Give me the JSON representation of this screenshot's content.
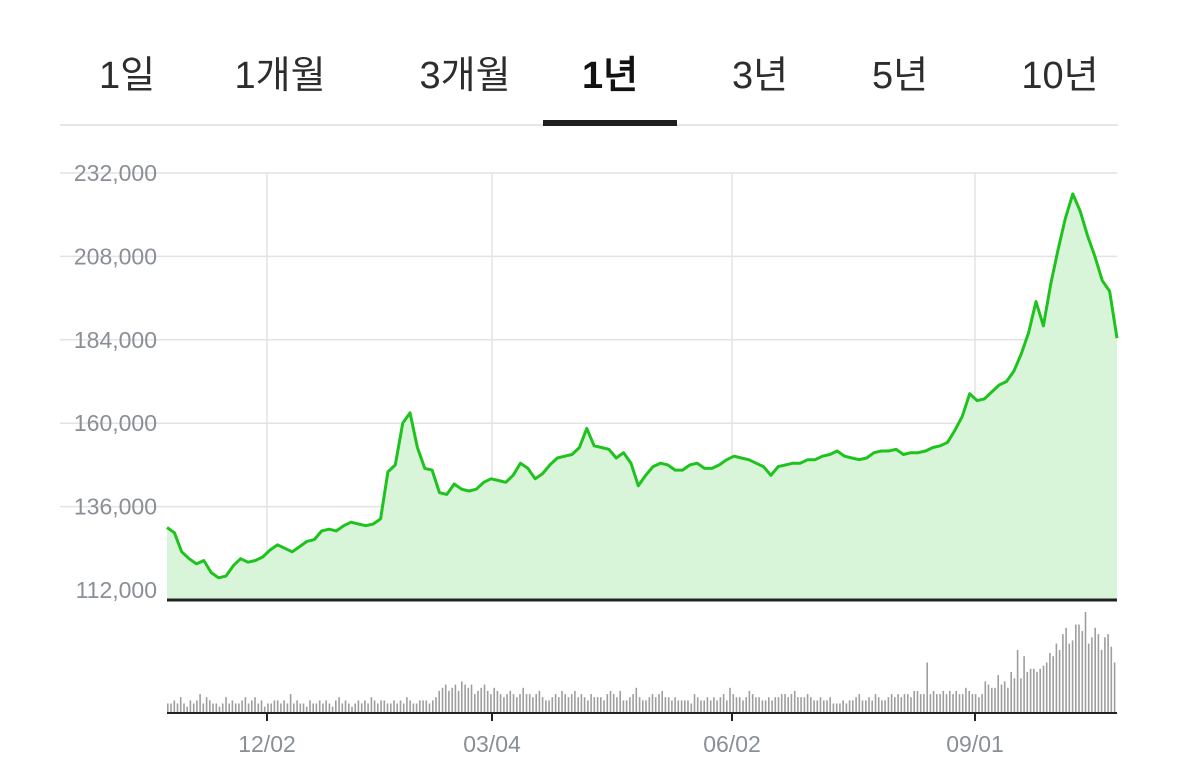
{
  "tabs": [
    {
      "label": "1일",
      "active": false
    },
    {
      "label": "1개월",
      "active": false
    },
    {
      "label": "3개월",
      "active": false
    },
    {
      "label": "1년",
      "active": true
    },
    {
      "label": "3년",
      "active": false
    },
    {
      "label": "5년",
      "active": false
    },
    {
      "label": "10년",
      "active": false
    }
  ],
  "chart_data": {
    "type": "area",
    "title": "",
    "xlabel": "",
    "ylabel": "",
    "ylim": [
      112000,
      232000
    ],
    "y_ticks": [
      "232,000",
      "208,000",
      "184,000",
      "160,000",
      "136,000",
      "112,000"
    ],
    "x_ticks": [
      "12/02",
      "03/04",
      "06/02",
      "09/01"
    ],
    "grid": true,
    "line_color": "#1ec31e",
    "fill_color": "#d9f5d9",
    "series": [
      {
        "values": [
          130000,
          128500,
          123000,
          121000,
          119500,
          120500,
          117000,
          115500,
          116000,
          119000,
          121000,
          120000,
          120500,
          121500,
          123500,
          125000,
          124000,
          123000,
          124500,
          126000,
          126500,
          129000,
          129500,
          129000,
          130500,
          131500,
          131000,
          130500,
          131000,
          132500,
          146000,
          148000,
          160000,
          163000,
          153000,
          147000,
          146500,
          140000,
          139500,
          142500,
          141000,
          140500,
          141000,
          143000,
          144000,
          143500,
          143000,
          145000,
          148500,
          147000,
          144000,
          145500,
          148000,
          150000,
          150500,
          151000,
          153000,
          158500,
          153500,
          153000,
          152500,
          150000,
          151500,
          148500,
          142000,
          145000,
          147500,
          148500,
          148000,
          146500,
          146500,
          148000,
          148500,
          147000,
          147000,
          148000,
          149500,
          150500,
          150000,
          149500,
          148500,
          147500,
          145000,
          147500,
          148000,
          148500,
          148500,
          149500,
          149500,
          150500,
          151000,
          152000,
          150500,
          150000,
          149500,
          150000,
          151500,
          152000,
          152000,
          152500,
          151000,
          151500,
          151500,
          152000,
          153000,
          153500,
          154500,
          158000,
          162000,
          168500,
          166500,
          167000,
          169000,
          171000,
          172000,
          175000,
          180000,
          186000,
          195000,
          188000,
          200000,
          210000,
          219000,
          226000,
          221000,
          214000,
          208000,
          201000,
          198000,
          184500
        ]
      }
    ],
    "volume": [
      3,
      3,
      4,
      3,
      5,
      3,
      2,
      4,
      3,
      4,
      6,
      3,
      5,
      4,
      3,
      3,
      2,
      3,
      5,
      3,
      4,
      3,
      3,
      4,
      5,
      3,
      4,
      5,
      3,
      4,
      2,
      3,
      3,
      4,
      4,
      3,
      4,
      3,
      6,
      3,
      4,
      3,
      3,
      2,
      4,
      3,
      3,
      4,
      3,
      4,
      3,
      2,
      4,
      5,
      3,
      4,
      3,
      2,
      3,
      4,
      3,
      4,
      3,
      5,
      4,
      3,
      4,
      4,
      3,
      3,
      4,
      3,
      4,
      3,
      5,
      4,
      3,
      3,
      4,
      4,
      4,
      3,
      4,
      5,
      7,
      8,
      9,
      7,
      8,
      9,
      7,
      10,
      9,
      8,
      9,
      6,
      7,
      8,
      9,
      7,
      6,
      8,
      7,
      6,
      5,
      6,
      7,
      6,
      5,
      6,
      8,
      6,
      6,
      5,
      6,
      7,
      5,
      4,
      4,
      5,
      6,
      5,
      7,
      6,
      5,
      6,
      7,
      5,
      6,
      5,
      4,
      6,
      5,
      5,
      5,
      4,
      6,
      7,
      6,
      5,
      7,
      4,
      4,
      5,
      6,
      8,
      5,
      4,
      4,
      5,
      6,
      5,
      6,
      7,
      5,
      5,
      4,
      5,
      4,
      4,
      4,
      4,
      3,
      6,
      5,
      4,
      4,
      5,
      4,
      5,
      4,
      5,
      6,
      4,
      8,
      6,
      5,
      5,
      4,
      5,
      7,
      6,
      5,
      5,
      4,
      4,
      5,
      4,
      5,
      5,
      6,
      6,
      5,
      6,
      7,
      5,
      5,
      5,
      6,
      5,
      4,
      4,
      5,
      4,
      4,
      5,
      3,
      3,
      3,
      4,
      3,
      4,
      4,
      5,
      6,
      4,
      4,
      5,
      4,
      6,
      5,
      4,
      4,
      5,
      6,
      5,
      6,
      5,
      6,
      6,
      5,
      7,
      7,
      6,
      6,
      16,
      6,
      7,
      6,
      6,
      7,
      6,
      7,
      6,
      7,
      6,
      6,
      8,
      7,
      6,
      6,
      5,
      6,
      10,
      9,
      8,
      8,
      12,
      9,
      10,
      8,
      13,
      11,
      20,
      11,
      18,
      13,
      14,
      14,
      13,
      14,
      15,
      16,
      19,
      18,
      22,
      20,
      25,
      27,
      22,
      23,
      28,
      28,
      26,
      32,
      22,
      24,
      27,
      25,
      20,
      24,
      25,
      21,
      16
    ]
  }
}
